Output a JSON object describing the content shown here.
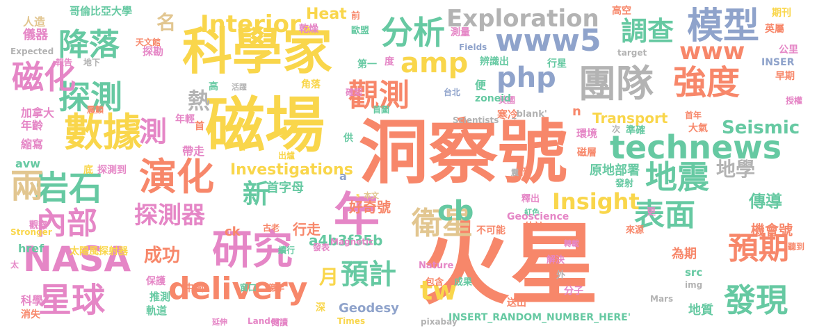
{
  "colors": {
    "orange": "#F7876A",
    "yellow": "#F9D64B",
    "green": "#66C9A2",
    "pink": "#E586C6",
    "blue": "#8FA3CB",
    "tan": "#E2C690",
    "gray": "#B3B3B3",
    "lime": "#A7D85A"
  },
  "words": [
    {
      "text": "火星",
      "color": "orange"
    },
    {
      "text": "洞察號",
      "color": "orange"
    },
    {
      "text": "磁場",
      "color": "yellow"
    },
    {
      "text": "科學家",
      "color": "yellow"
    },
    {
      "text": "團隊",
      "color": "gray"
    },
    {
      "text": "數據",
      "color": "yellow"
    },
    {
      "text": "technews",
      "color": "green"
    },
    {
      "text": "模型",
      "color": "blue"
    },
    {
      "text": "年",
      "color": "pink"
    },
    {
      "text": "演化",
      "color": "orange"
    },
    {
      "text": "www5",
      "color": "blue"
    },
    {
      "text": "php",
      "color": "blue"
    },
    {
      "text": "分析",
      "color": "green"
    },
    {
      "text": "研究",
      "color": "pink"
    },
    {
      "text": "NASA",
      "color": "pink"
    },
    {
      "text": "delivery",
      "color": "orange"
    },
    {
      "text": "強度",
      "color": "orange"
    },
    {
      "text": "表面",
      "color": "green"
    },
    {
      "text": "www",
      "color": "orange"
    },
    {
      "text": "地震",
      "color": "green"
    },
    {
      "text": "觀測",
      "color": "orange"
    },
    {
      "text": "衛星",
      "color": "tan"
    },
    {
      "text": "岩石",
      "color": "green"
    },
    {
      "text": "星球",
      "color": "pink"
    },
    {
      "text": "發現",
      "color": "green"
    },
    {
      "text": "預期",
      "color": "orange"
    },
    {
      "text": "探測",
      "color": "green"
    },
    {
      "text": "磁化",
      "color": "pink"
    },
    {
      "text": "降落",
      "color": "green"
    },
    {
      "text": "內部",
      "color": "pink"
    },
    {
      "text": "cb",
      "color": "green"
    },
    {
      "text": "amp",
      "color": "yellow"
    },
    {
      "text": "調查",
      "color": "green"
    },
    {
      "text": "tw",
      "color": "yellow"
    },
    {
      "text": "預計",
      "color": "green"
    },
    {
      "text": "兩",
      "color": "tan"
    },
    {
      "text": "測",
      "color": "pink"
    },
    {
      "text": "Interior",
      "color": "yellow"
    },
    {
      "text": "Exploration",
      "color": "gray"
    },
    {
      "text": "Insight",
      "color": "yellow"
    },
    {
      "text": "新",
      "color": "green"
    },
    {
      "text": "探測器",
      "color": "pink"
    },
    {
      "text": "Seismic",
      "color": "green"
    },
    {
      "text": "地學",
      "color": "gray"
    },
    {
      "text": "傳導",
      "color": "green"
    },
    {
      "text": "熱",
      "color": "gray"
    },
    {
      "text": "名",
      "color": "tan"
    },
    {
      "text": "成功",
      "color": "orange"
    },
    {
      "text": "月",
      "color": "yellow"
    },
    {
      "text": "Investigations",
      "color": "yellow"
    },
    {
      "text": "Transport",
      "color": "yellow"
    },
    {
      "text": "Geodesy",
      "color": "blue"
    },
    {
      "text": "a4b3f35b",
      "color": "green"
    },
    {
      "text": "機會號",
      "color": "orange"
    },
    {
      "text": "Heat",
      "color": "yellow"
    },
    {
      "text": "好奇號",
      "color": "orange"
    },
    {
      "text": "首字母",
      "color": "green"
    },
    {
      "text": "行走",
      "color": "orange"
    },
    {
      "text": "原地部署",
      "color": "green"
    },
    {
      "text": "href",
      "color": "green"
    },
    {
      "text": "地質",
      "color": "green"
    },
    {
      "text": "為期",
      "color": "orange"
    },
    {
      "text": "ck",
      "color": "orange"
    },
    {
      "text": "n",
      "color": "orange"
    },
    {
      "text": "縮寫",
      "color": "pink"
    },
    {
      "text": "哥倫比亞大學",
      "color": "green"
    },
    {
      "text": "儀器",
      "color": "pink"
    },
    {
      "text": "人造",
      "color": "tan"
    },
    {
      "text": "探勘",
      "color": "pink"
    },
    {
      "text": "高空",
      "color": "orange"
    },
    {
      "text": "英屬",
      "color": "orange"
    },
    {
      "text": "期刊",
      "color": "yellow"
    },
    {
      "text": "公里",
      "color": "pink"
    },
    {
      "text": "INSER",
      "color": "blue"
    },
    {
      "text": "早期",
      "color": "orange"
    },
    {
      "text": "授權",
      "color": "pink"
    },
    {
      "text": "Expected",
      "color": "gray"
    },
    {
      "text": "報告",
      "color": "pink"
    },
    {
      "text": "地下",
      "color": "gray"
    },
    {
      "text": "天文館",
      "color": "orange"
    },
    {
      "text": "加拿大",
      "color": "pink"
    },
    {
      "text": "年齡",
      "color": "pink"
    },
    {
      "text": "震顫",
      "color": "orange"
    },
    {
      "text": "年輕",
      "color": "pink"
    },
    {
      "text": "首",
      "color": "orange"
    },
    {
      "text": "帶走",
      "color": "pink"
    },
    {
      "text": "avw",
      "color": "green"
    },
    {
      "text": "底",
      "color": "yellow"
    },
    {
      "text": "探測到",
      "color": "pink"
    },
    {
      "text": "太陽風探射器",
      "color": "yellow"
    },
    {
      "text": "保護",
      "color": "pink"
    },
    {
      "text": "推測",
      "color": "green"
    },
    {
      "text": "軌道",
      "color": "green"
    },
    {
      "text": "科學",
      "color": "pink"
    },
    {
      "text": "消失",
      "color": "orange"
    },
    {
      "text": "觀察",
      "color": "pink"
    },
    {
      "text": "Stronger",
      "color": "yellow"
    },
    {
      "text": "太",
      "color": "pink"
    },
    {
      "text": "中國",
      "color": "orange"
    },
    {
      "text": "窗口",
      "color": "green"
    },
    {
      "text": "億年",
      "color": "orange"
    },
    {
      "text": "古老",
      "color": "orange"
    },
    {
      "text": "續行",
      "color": "green"
    },
    {
      "text": "發表",
      "color": "pink"
    },
    {
      "text": "Magnetic",
      "color": "pink"
    },
    {
      "text": "Nature",
      "color": "pink"
    },
    {
      "text": "包含",
      "color": "orange"
    },
    {
      "text": "成果",
      "color": "green"
    },
    {
      "text": "深",
      "color": "yellow"
    },
    {
      "text": "Times",
      "color": "yellow"
    },
    {
      "text": "Lander",
      "color": "pink"
    },
    {
      "text": "閱讀",
      "color": "pink"
    },
    {
      "text": "延伸",
      "color": "pink"
    },
    {
      "text": "pixabay",
      "color": "gray"
    },
    {
      "text": "INSERT_RANDOM_NUMBER_HERE'",
      "color": "green"
    },
    {
      "text": "乾燥",
      "color": "pink"
    },
    {
      "text": "前",
      "color": "orange"
    },
    {
      "text": "歐盟",
      "color": "green"
    },
    {
      "text": "測量",
      "color": "pink"
    },
    {
      "text": "Fields",
      "color": "blue"
    },
    {
      "text": "辨識出",
      "color": "green"
    },
    {
      "text": "第一",
      "color": "green"
    },
    {
      "text": "度",
      "color": "pink"
    },
    {
      "text": "行星",
      "color": "green"
    },
    {
      "text": "角落",
      "color": "yellow"
    },
    {
      "text": "活躍",
      "color": "gray"
    },
    {
      "text": "高",
      "color": "green"
    },
    {
      "text": "確認",
      "color": "pink"
    },
    {
      "text": "台北",
      "color": "blue"
    },
    {
      "text": "便",
      "color": "green"
    },
    {
      "text": "美國",
      "color": "pink"
    },
    {
      "text": "zoneid",
      "color": "green"
    },
    {
      "text": "首圖",
      "color": "green"
    },
    {
      "text": "寒冷",
      "color": "orange"
    },
    {
      "text": "_blank'",
      "color": "gray"
    },
    {
      "text": "Scientists",
      "color": "gray"
    },
    {
      "text": "環境",
      "color": "pink"
    },
    {
      "text": "準確",
      "color": "green"
    },
    {
      "text": "次",
      "color": "gray"
    },
    {
      "text": "大氣",
      "color": "orange"
    },
    {
      "text": "首年",
      "color": "orange"
    },
    {
      "text": "磁層",
      "color": "orange"
    },
    {
      "text": "倍",
      "color": "orange"
    },
    {
      "text": "發射",
      "color": "green"
    },
    {
      "text": "釋出",
      "color": "pink"
    },
    {
      "text": "紅色",
      "color": "green"
    },
    {
      "text": "Geoscience",
      "color": "pink"
    },
    {
      "text": "不可能",
      "color": "orange"
    },
    {
      "text": "估計",
      "color": "orange"
    },
    {
      "text": "更",
      "color": "pink"
    },
    {
      "text": "來源",
      "color": "orange"
    },
    {
      "text": "轉載",
      "color": "pink"
    },
    {
      "text": "src",
      "color": "green"
    },
    {
      "text": "聽到",
      "color": "orange"
    },
    {
      "text": "解決",
      "color": "pink"
    },
    {
      "text": "img",
      "color": "gray"
    },
    {
      "text": "外",
      "color": "gray"
    },
    {
      "text": "分子",
      "color": "pink"
    },
    {
      "text": "送出",
      "color": "orange"
    },
    {
      "text": "Mars",
      "color": "gray"
    },
    {
      "text": "target",
      "color": "gray"
    },
    {
      "text": "出爐",
      "color": "yellow"
    },
    {
      "text": "供",
      "color": "green"
    },
    {
      "text": "a",
      "color": "blue"
    },
    {
      "text": "震",
      "color": "gray"
    },
    {
      "text": "本文",
      "color": "tan"
    },
    {
      "text": "s",
      "color": "yellow"
    }
  ]
}
